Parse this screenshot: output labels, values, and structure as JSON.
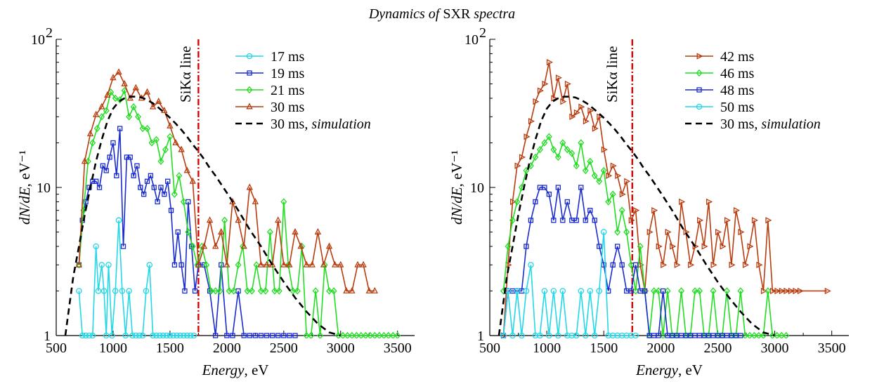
{
  "figure": {
    "title_italic": "Dynamics of",
    "title_roman": "SXR",
    "title_italic2": "spectra"
  },
  "chart_data": [
    {
      "type": "line",
      "xlabel": "Energy, eV",
      "ylabel": "dN/dE, eV⁻¹",
      "xlim": [
        500,
        3650
      ],
      "ylim": [
        1,
        100
      ],
      "yscale": "log",
      "xticks": [
        500,
        1000,
        1500,
        2000,
        2500,
        3000,
        3500
      ],
      "yticks": [
        "1",
        "10",
        "10²"
      ],
      "annotation": {
        "text": "SiKα line",
        "x": 1750,
        "color": "#e00000"
      },
      "legend": "top-right",
      "series": [
        {
          "name": "17 ms",
          "color": "#22d8e8",
          "marker": "circle",
          "x": [
            700,
            730,
            760,
            790,
            820,
            850,
            870,
            900,
            920,
            940,
            960,
            990,
            1020,
            1050,
            1080,
            1110,
            1140,
            1170,
            1200,
            1230,
            1260,
            1290,
            1320,
            1350,
            1380,
            1410,
            1440,
            1470,
            1500,
            1530,
            1560,
            1590,
            1620,
            1650,
            1680,
            1710
          ],
          "values": [
            2,
            1,
            1,
            1,
            1,
            4,
            2,
            3,
            2,
            1,
            3,
            1,
            2,
            6,
            2,
            1,
            2,
            1,
            1,
            1,
            1,
            2,
            3,
            1,
            1,
            1,
            1,
            1,
            1,
            1,
            1,
            1,
            1,
            1,
            1,
            1
          ]
        },
        {
          "name": "19 ms",
          "color": "#1a2bd0",
          "marker": "square",
          "x": [
            700,
            730,
            760,
            790,
            820,
            850,
            880,
            910,
            940,
            970,
            1000,
            1030,
            1060,
            1090,
            1120,
            1150,
            1180,
            1210,
            1240,
            1270,
            1300,
            1330,
            1360,
            1390,
            1420,
            1450,
            1480,
            1510,
            1540,
            1570,
            1600,
            1630,
            1660,
            1690,
            1720,
            1750,
            1800,
            1850,
            1900,
            1950,
            2000,
            2050,
            2100,
            2150,
            2200,
            2250,
            2300,
            2350,
            2400,
            2450,
            2500,
            2550,
            2600
          ],
          "values": [
            3,
            6,
            8,
            10,
            11,
            11,
            10,
            14,
            13,
            16,
            20,
            12,
            25,
            4,
            16,
            16,
            12,
            14,
            10,
            9,
            11,
            12,
            10,
            8,
            10,
            9,
            11,
            7,
            3,
            5,
            3,
            2,
            8,
            4,
            2,
            3,
            3,
            2,
            1,
            3,
            1,
            1,
            2,
            1,
            1,
            1,
            1,
            1,
            1,
            1,
            1,
            1,
            1
          ]
        },
        {
          "name": "21 ms",
          "color": "#22dd22",
          "marker": "diamond",
          "x": [
            700,
            740,
            780,
            820,
            860,
            900,
            940,
            980,
            1020,
            1060,
            1100,
            1140,
            1180,
            1220,
            1260,
            1300,
            1340,
            1380,
            1420,
            1460,
            1500,
            1540,
            1580,
            1620,
            1660,
            1700,
            1740,
            1780,
            1820,
            1860,
            1900,
            1940,
            1980,
            2020,
            2060,
            2100,
            2140,
            2180,
            2220,
            2260,
            2300,
            2340,
            2380,
            2420,
            2460,
            2500,
            2540,
            2580,
            2620,
            2660,
            2700,
            2740,
            2780,
            2820,
            2860,
            2900,
            2940,
            2980,
            3020,
            3060,
            3100,
            3140,
            3180,
            3220,
            3260,
            3300,
            3340,
            3380,
            3420,
            3460,
            3500
          ],
          "values": [
            3,
            7,
            15,
            20,
            25,
            30,
            33,
            44,
            40,
            39,
            45,
            30,
            35,
            30,
            25,
            25,
            20,
            21,
            15,
            18,
            22,
            9,
            12,
            8,
            5,
            4,
            3,
            4,
            3,
            2,
            2,
            2,
            6,
            2,
            2,
            3,
            4,
            2,
            2,
            3,
            2,
            2,
            5,
            2,
            2,
            8,
            3,
            2,
            2,
            4,
            1,
            1,
            2,
            1,
            3,
            2,
            2,
            1,
            1,
            1,
            1,
            1,
            1,
            1,
            1,
            1,
            1,
            1,
            1,
            1,
            1
          ]
        },
        {
          "name": "30 ms",
          "color": "#b83c0e",
          "marker": "triangle-up",
          "x": [
            700,
            750,
            800,
            850,
            900,
            950,
            1000,
            1050,
            1100,
            1150,
            1200,
            1250,
            1300,
            1350,
            1400,
            1450,
            1500,
            1550,
            1600,
            1650,
            1700,
            1750,
            1800,
            1850,
            1900,
            1950,
            2000,
            2050,
            2100,
            2150,
            2200,
            2250,
            2300,
            2350,
            2400,
            2450,
            2500,
            2550,
            2600,
            2650,
            2700,
            2750,
            2800,
            2850,
            2900,
            2950,
            3000,
            3050,
            3100,
            3150,
            3200,
            3250,
            3300
          ],
          "values": [
            3,
            15,
            23,
            31,
            35,
            42,
            55,
            60,
            50,
            40,
            47,
            40,
            44,
            35,
            38,
            33,
            26,
            20,
            18,
            13,
            11,
            3,
            4,
            6,
            4,
            5,
            3,
            8,
            6,
            4,
            10,
            8,
            3,
            3,
            3,
            6,
            3,
            3,
            5,
            4,
            3,
            3,
            5,
            3,
            4,
            3,
            3,
            2,
            2,
            3,
            3,
            2,
            2
          ]
        },
        {
          "name": "30 ms, simulation",
          "color": "#000000",
          "dashed": true,
          "marker": "none",
          "x": [
            580,
            650,
            700,
            750,
            800,
            850,
            900,
            950,
            1000,
            1050,
            1100,
            1150,
            1200,
            1250,
            1300,
            1350,
            1400,
            1450,
            1500,
            1550,
            1600,
            1650,
            1700,
            1750,
            1800,
            1850,
            1900,
            1950,
            2000,
            2100,
            2200,
            2300,
            2400,
            2500,
            2600,
            2700,
            2800,
            2900,
            3000
          ],
          "values": [
            1,
            2.5,
            4,
            6.5,
            10,
            15,
            21,
            28,
            34,
            38,
            40,
            41,
            41,
            40.5,
            39,
            37,
            34.5,
            32,
            29.5,
            27,
            24.5,
            22,
            19.5,
            17.5,
            15.5,
            13.5,
            12,
            10.5,
            9.2,
            7,
            5.2,
            4,
            3,
            2.3,
            1.8,
            1.45,
            1.2,
            1.05,
            1
          ]
        }
      ]
    },
    {
      "type": "line",
      "xlabel": "Energy, eV",
      "ylabel": "dN/dE, eV⁻¹",
      "xlim": [
        500,
        3650
      ],
      "ylim": [
        1,
        100
      ],
      "yscale": "log",
      "xticks": [
        500,
        1000,
        1500,
        2000,
        2500,
        3000,
        3500
      ],
      "yticks": [
        "1",
        "10",
        "10²"
      ],
      "annotation": {
        "text": "SiKα line",
        "x": 1750,
        "color": "#e00000"
      },
      "legend": "top-right",
      "series": [
        {
          "name": "42 ms",
          "color": "#b83c0e",
          "marker": "triangle-right",
          "x": [
            620,
            660,
            700,
            740,
            780,
            820,
            860,
            900,
            940,
            980,
            1020,
            1060,
            1100,
            1140,
            1180,
            1220,
            1260,
            1300,
            1340,
            1380,
            1420,
            1460,
            1500,
            1540,
            1580,
            1620,
            1660,
            1700,
            1740,
            1780,
            1820,
            1860,
            1900,
            1940,
            1980,
            2020,
            2060,
            2100,
            2140,
            2180,
            2220,
            2260,
            2300,
            2340,
            2380,
            2420,
            2460,
            2500,
            2540,
            2580,
            2620,
            2660,
            2700,
            2740,
            2780,
            2820,
            2860,
            2900,
            2940,
            2980,
            3020,
            3060,
            3100,
            3140,
            3180,
            3220,
            3460
          ],
          "values": [
            1,
            3,
            8,
            14,
            16,
            22,
            28,
            38,
            45,
            50,
            70,
            40,
            55,
            38,
            50,
            30,
            32,
            35,
            28,
            33,
            25,
            30,
            18,
            12,
            14,
            12,
            9,
            11,
            6,
            7,
            3,
            2,
            5,
            7,
            4,
            3,
            5,
            4,
            3,
            8,
            5,
            3,
            4,
            6,
            4,
            8,
            3,
            5,
            4,
            6,
            3,
            7,
            5,
            3,
            4,
            6,
            3,
            2,
            6,
            2,
            2,
            2,
            2,
            2,
            2,
            2,
            2
          ]
        },
        {
          "name": "46 ms",
          "color": "#22dd22",
          "marker": "diamond",
          "x": [
            620,
            660,
            700,
            740,
            780,
            820,
            860,
            900,
            940,
            980,
            1020,
            1060,
            1100,
            1140,
            1180,
            1220,
            1260,
            1300,
            1340,
            1380,
            1420,
            1460,
            1500,
            1540,
            1580,
            1620,
            1660,
            1700,
            1740,
            1780,
            1820,
            1860,
            1900,
            1940,
            1980,
            2020,
            2060,
            2100,
            2140,
            2180,
            2220,
            2260,
            2300,
            2340,
            2380,
            2420,
            2460,
            2500,
            2540,
            2580,
            2620,
            2660,
            2700,
            2740,
            2780,
            2820,
            2860,
            2900,
            2940,
            2980,
            3020,
            3060,
            3100
          ],
          "values": [
            2,
            4,
            6,
            8,
            10,
            13,
            14,
            16,
            18,
            20,
            22,
            18,
            16,
            20,
            18,
            17,
            14,
            20,
            13,
            15,
            12,
            11,
            13,
            8,
            9,
            5,
            7,
            5,
            3,
            2,
            4,
            2,
            1,
            2,
            2,
            1,
            2,
            1,
            1,
            2,
            1,
            1,
            2,
            2,
            1,
            1,
            2,
            1,
            1,
            2,
            1,
            1,
            2,
            1,
            1,
            1,
            1,
            1,
            2,
            1,
            1,
            1,
            1
          ]
        },
        {
          "name": "48 ms",
          "color": "#1a2bd0",
          "marker": "square",
          "x": [
            620,
            660,
            700,
            740,
            780,
            820,
            860,
            900,
            940,
            980,
            1020,
            1060,
            1100,
            1140,
            1180,
            1220,
            1260,
            1300,
            1340,
            1380,
            1420,
            1460,
            1500,
            1540,
            1580,
            1620,
            1660,
            1700,
            1740,
            1780,
            1820,
            1860,
            1900,
            1940,
            1980,
            2020,
            2060,
            2100,
            2140,
            2180,
            2220,
            2260,
            2300,
            2340,
            2380,
            2420,
            2460,
            2500,
            2540,
            2580,
            2620,
            2660,
            2700
          ],
          "values": [
            1,
            2,
            2,
            2,
            2,
            4,
            6,
            8,
            10,
            10,
            9,
            6,
            10,
            6,
            8,
            6,
            6,
            10,
            6,
            7,
            6,
            4,
            3,
            2,
            3,
            4,
            3,
            2,
            2,
            3,
            2,
            2,
            1,
            1,
            1,
            2,
            1,
            1,
            1,
            1,
            1,
            1,
            1,
            1,
            1,
            1,
            1,
            1,
            1,
            1,
            1,
            1,
            1
          ]
        },
        {
          "name": "50 ms",
          "color": "#22d8e8",
          "marker": "circle",
          "x": [
            620,
            660,
            700,
            740,
            780,
            820,
            860,
            900,
            940,
            980,
            1020,
            1060,
            1100,
            1140,
            1180,
            1220,
            1260,
            1300,
            1340,
            1380,
            1420,
            1460,
            1500,
            1540,
            1580,
            1620,
            1660,
            1700,
            1740,
            1780
          ],
          "values": [
            1,
            2,
            1,
            2,
            1,
            2,
            3,
            1,
            1,
            2,
            1,
            2,
            1,
            2,
            1,
            1,
            1,
            2,
            1,
            2,
            1,
            2,
            5,
            1,
            1,
            1,
            1,
            1,
            1,
            1
          ]
        },
        {
          "name": "30 ms, simulation",
          "color": "#000000",
          "dashed": true,
          "marker": "none",
          "x": [
            580,
            650,
            700,
            750,
            800,
            850,
            900,
            950,
            1000,
            1050,
            1100,
            1150,
            1200,
            1250,
            1300,
            1350,
            1400,
            1450,
            1500,
            1550,
            1600,
            1650,
            1700,
            1750,
            1800,
            1850,
            1900,
            1950,
            2000,
            2100,
            2200,
            2300,
            2400,
            2500,
            2600,
            2700,
            2800,
            2900,
            3000
          ],
          "values": [
            1,
            2.5,
            4,
            6.5,
            10,
            15,
            21,
            28,
            34,
            38,
            40,
            41,
            41,
            40.5,
            39,
            37,
            34.5,
            32,
            29.5,
            27,
            24.5,
            22,
            19.5,
            17.5,
            15.5,
            13.5,
            12,
            10.5,
            9.2,
            7,
            5.2,
            4,
            3,
            2.3,
            1.8,
            1.45,
            1.2,
            1.05,
            1
          ]
        }
      ]
    }
  ]
}
